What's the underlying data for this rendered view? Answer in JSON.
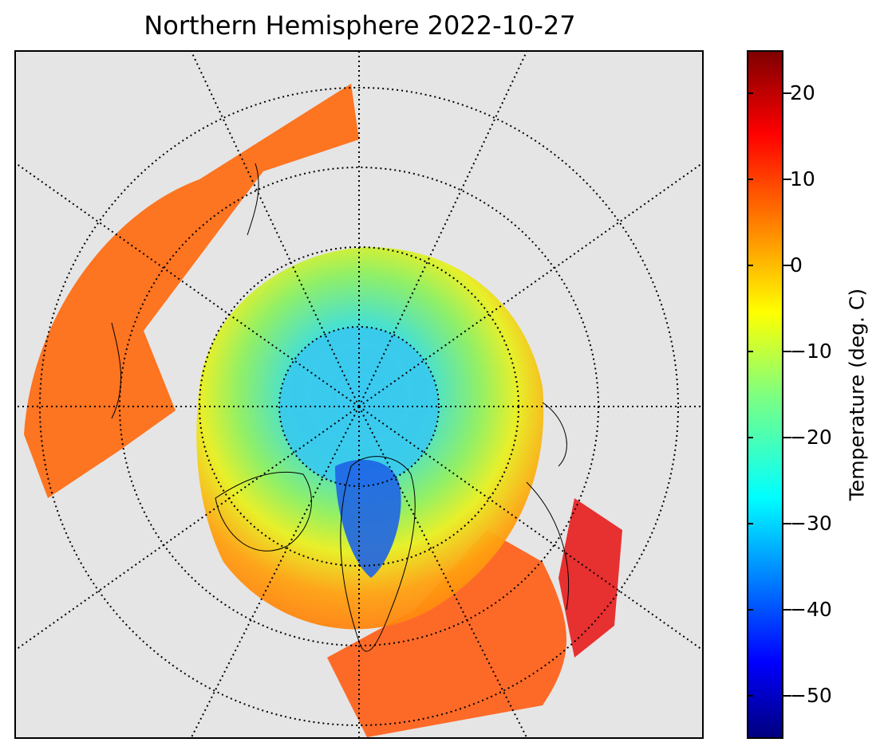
{
  "title": "Northern Hemisphere 2022-10-27",
  "map": {
    "projection": "north polar stereographic",
    "variable": "surface temperature",
    "graticule": "dotted",
    "coastlines": true,
    "background_color": "#e5e5e5",
    "colormap": "jet"
  },
  "colorbar": {
    "label": "Temperature (deg. C)",
    "range": [
      -55,
      25
    ],
    "ticks": [
      {
        "value": 20,
        "label": "20"
      },
      {
        "value": 10,
        "label": "10"
      },
      {
        "value": 0,
        "label": "0"
      },
      {
        "value": -10,
        "label": "−10"
      },
      {
        "value": -20,
        "label": "−20"
      },
      {
        "value": -30,
        "label": "−30"
      },
      {
        "value": -40,
        "label": "−40"
      },
      {
        "value": -50,
        "label": "−50"
      }
    ]
  }
}
